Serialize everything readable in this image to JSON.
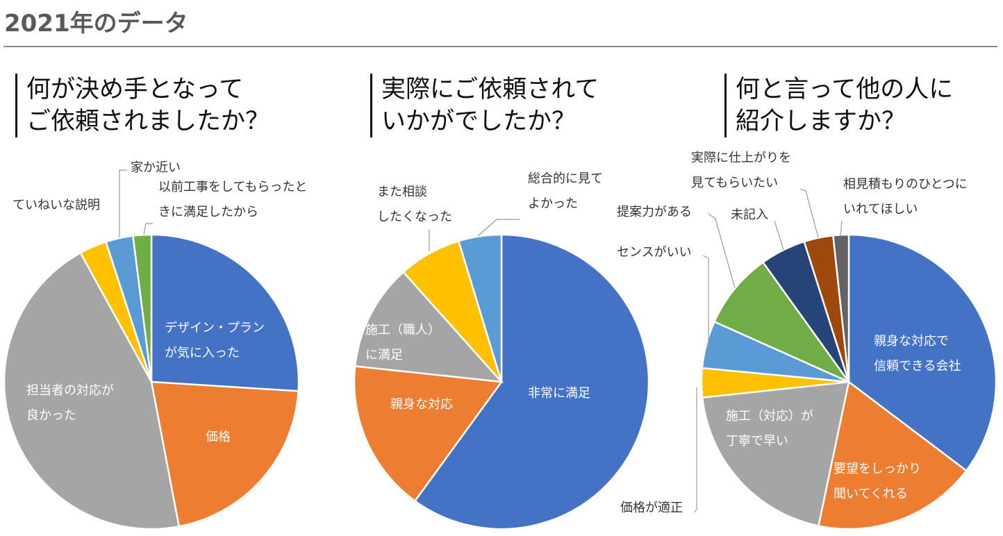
{
  "header": {
    "title": "2021年のデータ"
  },
  "chart_data": [
    {
      "type": "pie",
      "title": "何が決め手となって\nご依頼されましたか？",
      "categories": [
        "デザイン・プラン\nが気に入った",
        "価格",
        "担当者の対応が\n良かった",
        "ていねいな説明",
        "家か近い",
        "以前工事をしてもらったと\nきに満足したから"
      ],
      "values": [
        26,
        21,
        45,
        3,
        3,
        2
      ],
      "colors": [
        "#4472c4",
        "#ed7d31",
        "#a5a5a5",
        "#ffc000",
        "#5b9bd5",
        "#70ad47"
      ]
    },
    {
      "type": "pie",
      "title": "実際にご依頼されて\nいかがでしたか？",
      "categories": [
        "非常に満足",
        "親身な対応",
        "施工（職人）\nに満足",
        "また相談\nしたくなった",
        "総合的に見て\nよかった"
      ],
      "values": [
        60,
        16.7,
        11.7,
        6.9,
        4.7
      ],
      "colors": [
        "#4472c4",
        "#ed7d31",
        "#a5a5a5",
        "#ffc000",
        "#5b9bd5"
      ]
    },
    {
      "type": "pie",
      "title": "何と言って他の人に\n紹介しますか？",
      "categories": [
        "親身な対応で\n信頼できる会社",
        "要望をしっかり\n聞いてくれる",
        "施工（対応）が\n丁寧で早い",
        "価格が適正",
        "センスがいい",
        "提案力がある",
        "未記入",
        "実際に仕上がりを\n見てもらいたい",
        "相見積もりのひとつに\nいれてほしい"
      ],
      "values": [
        35.3,
        18,
        20,
        3.2,
        5.2,
        8.4,
        5,
        3.2,
        1.7
      ],
      "colors": [
        "#4472c4",
        "#ed7d31",
        "#a5a5a5",
        "#ffc000",
        "#5b9bd5",
        "#70ad47",
        "#264478",
        "#9e480e",
        "#636363"
      ]
    }
  ]
}
